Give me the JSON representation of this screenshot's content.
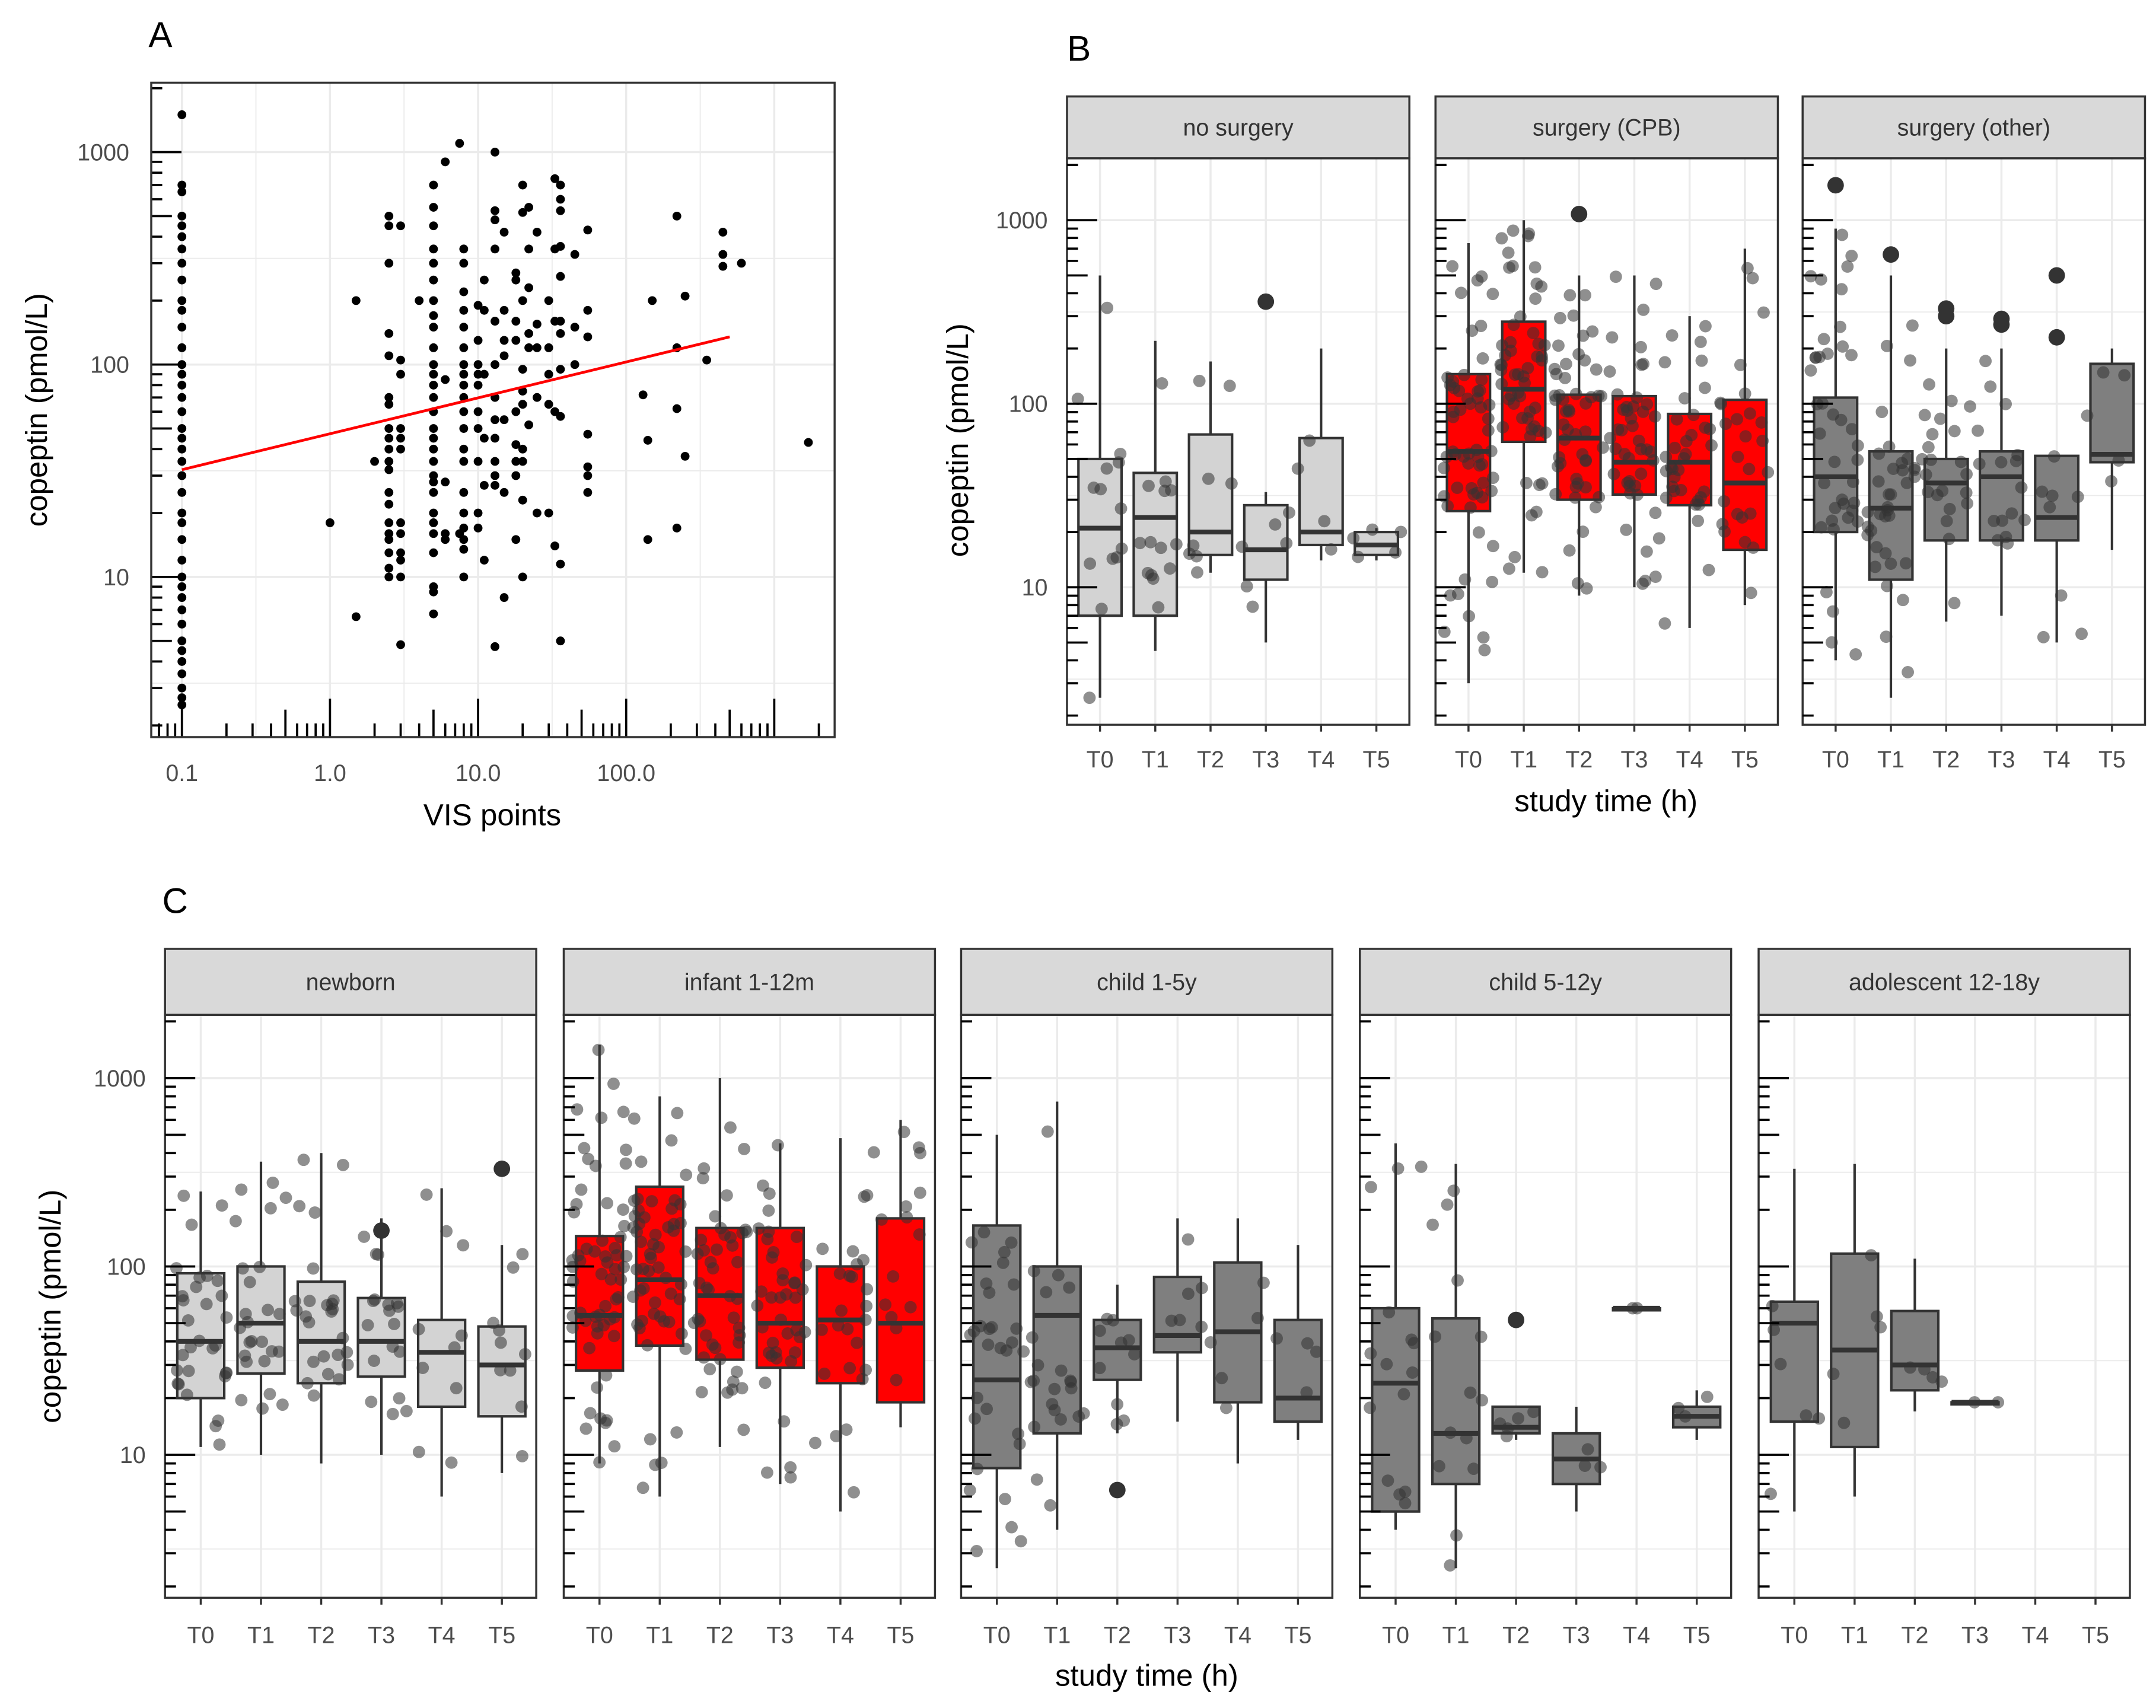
{
  "chart_data": [
    {
      "panel": "A",
      "type": "scatter",
      "xlabel": "VIS points",
      "ylabel": "copeptin (pmol/L)",
      "xscale": "log10",
      "yscale": "log10",
      "xticks": [
        0.1,
        1,
        10,
        100
      ],
      "xtick_labels": [
        "0.1",
        "1.0",
        "10.0",
        "100.0"
      ],
      "yticks": [
        10,
        100,
        1000
      ],
      "ytick_labels": [
        "10",
        "100",
        "1000"
      ],
      "xlim": [
        0.062,
        2570
      ],
      "ylim": [
        1.76,
        2130
      ],
      "regression_line": {
        "color": "#ff0000",
        "from": [
          0.1,
          32
        ],
        "to": [
          500,
          135
        ]
      },
      "points_by_x": [
        [
          0.1,
          [
            1500,
            700,
            650,
            500,
            450,
            400,
            350,
            300,
            250,
            200,
            180,
            150,
            120,
            100,
            90,
            80,
            70,
            60,
            50,
            45,
            40,
            35,
            30,
            25,
            20,
            18,
            15,
            12,
            10,
            9,
            8,
            7,
            6,
            5,
            4.5,
            4,
            3.5,
            3,
            2.7,
            2.5
          ]
        ],
        [
          1,
          [
            18
          ]
        ],
        [
          1.5,
          [
            200,
            6.5
          ]
        ],
        [
          2,
          [
            35
          ]
        ],
        [
          2.5,
          [
            500,
            450,
            300,
            140,
            110,
            70,
            65,
            50,
            45,
            40,
            35,
            32,
            25,
            22,
            18,
            16,
            15,
            13,
            11,
            10
          ]
        ],
        [
          3,
          [
            450,
            105,
            90,
            50,
            45,
            40,
            18,
            16,
            13,
            12,
            10,
            4.8
          ]
        ],
        [
          4,
          [
            200
          ]
        ],
        [
          5,
          [
            700,
            550,
            450,
            350,
            300,
            250,
            200,
            170,
            150,
            120,
            100,
            90,
            80,
            70,
            60,
            50,
            45,
            40,
            35,
            30,
            28,
            25,
            20,
            18,
            16,
            13,
            9,
            8.5,
            6.7
          ]
        ],
        [
          6,
          [
            900,
            85,
            28,
            16,
            15
          ]
        ],
        [
          7.5,
          [
            1100,
            16
          ]
        ],
        [
          8,
          [
            350,
            300,
            220,
            180,
            150,
            120,
            100,
            90,
            80,
            70,
            60,
            50,
            40,
            35,
            25,
            20,
            17,
            15,
            13.5,
            10
          ]
        ],
        [
          10,
          [
            190,
            130,
            100,
            90,
            80,
            60,
            50,
            35,
            20,
            17
          ]
        ],
        [
          11,
          [
            250,
            180,
            90,
            45,
            27,
            12
          ]
        ],
        [
          13,
          [
            1000,
            530,
            480,
            350,
            160,
            100,
            70,
            55,
            45,
            35,
            30,
            27,
            4.7
          ]
        ],
        [
          15,
          [
            420,
            180,
            130,
            110,
            55,
            25,
            8
          ]
        ],
        [
          18,
          [
            270,
            250,
            160,
            130,
            60,
            42,
            35,
            30,
            15
          ]
        ],
        [
          20,
          [
            700,
            520,
            200,
            95,
            75,
            65,
            40,
            35,
            23,
            10
          ]
        ],
        [
          22,
          [
            550,
            350,
            230,
            140,
            120,
            52
          ]
        ],
        [
          25,
          [
            420,
            155,
            120,
            70,
            20
          ]
        ],
        [
          30,
          [
            200,
            120,
            90,
            65,
            20
          ]
        ],
        [
          33,
          [
            750,
            350,
            160,
            60,
            14
          ]
        ],
        [
          36,
          [
            700,
            600,
            530,
            360,
            260,
            160,
            140,
            95,
            57,
            11.5,
            5
          ]
        ],
        [
          45,
          [
            330,
            150,
            100
          ]
        ],
        [
          55,
          [
            430,
            180,
            135,
            47,
            33,
            30,
            25
          ]
        ],
        [
          130,
          [
            72
          ]
        ],
        [
          140,
          [
            44,
            15
          ]
        ],
        [
          150,
          [
            200
          ]
        ],
        [
          220,
          [
            500,
            120,
            62,
            17
          ]
        ],
        [
          250,
          [
            210,
            37
          ]
        ],
        [
          350,
          [
            105
          ]
        ],
        [
          450,
          [
            420,
            330,
            290
          ]
        ],
        [
          600,
          [
            300
          ]
        ],
        [
          1700,
          [
            43
          ]
        ]
      ]
    },
    {
      "panel": "B",
      "type": "box",
      "xlabel": "study time (h)",
      "ylabel": "copeptin (pmol/L)",
      "yscale": "log10",
      "ylim": [
        1.8,
        2300
      ],
      "yticks": [
        10,
        100,
        1000
      ],
      "ytick_labels": [
        "10",
        "100",
        "1000"
      ],
      "categories": [
        "T0",
        "T1",
        "T2",
        "T3",
        "T4",
        "T5"
      ],
      "box_stats_order": [
        "lower_whisker",
        "q1",
        "median",
        "q3",
        "upper_whisker"
      ],
      "facets": [
        {
          "name": "no surgery",
          "fill": "#d3d3d3",
          "n": [
            14,
            14,
            8,
            6,
            4,
            5
          ],
          "boxes": [
            [
              2.5,
              7,
              21,
              50,
              500
            ],
            [
              4.5,
              7,
              24,
              42,
              220
            ],
            [
              12,
              15,
              20,
              68,
              170
            ],
            [
              5,
              11,
              16,
              28,
              33
            ],
            [
              14,
              17,
              20,
              65,
              200
            ],
            [
              14,
              15,
              17,
              20,
              21
            ]
          ],
          "outliers": [
            [],
            [],
            [],
            [
              360
            ],
            [],
            []
          ]
        },
        {
          "name": "surgery (CPB)",
          "fill": "#ff0000",
          "n": [
            60,
            55,
            50,
            45,
            35,
            25
          ],
          "boxes": [
            [
              3,
              26,
              55,
              145,
              750
            ],
            [
              12,
              62,
              120,
              280,
              1000
            ],
            [
              9,
              30,
              65,
              112,
              500
            ],
            [
              10,
              32,
              48,
              110,
              500
            ],
            [
              6,
              28,
              48,
              88,
              300
            ],
            [
              8,
              16,
              37,
              105,
              700
            ]
          ],
          "outliers": [
            [],
            [],
            [
              1080
            ],
            [],
            [],
            []
          ]
        },
        {
          "name": "surgery (other)",
          "fill": "#7f7f7f",
          "n": [
            40,
            35,
            22,
            16,
            8,
            5
          ],
          "boxes": [
            [
              4,
              20,
              40,
              108,
              900
            ],
            [
              2.5,
              11,
              27,
              55,
              500
            ],
            [
              6.5,
              18,
              37,
              50,
              200
            ],
            [
              7,
              18,
              40,
              55,
              200
            ],
            [
              5,
              18,
              24,
              52,
              50
            ],
            [
              16,
              48,
              53,
              165,
              200
            ]
          ],
          "outliers": [
            [
              1550
            ],
            [
              650
            ],
            [
              330,
              300
            ],
            [
              270,
              290
            ],
            [
              500,
              230
            ],
            []
          ]
        }
      ]
    },
    {
      "panel": "C",
      "type": "box",
      "xlabel": "study time (h)",
      "ylabel": "copeptin (pmol/L)",
      "yscale": "log10",
      "ylim": [
        1.8,
        2300
      ],
      "yticks": [
        10,
        100,
        1000
      ],
      "ytick_labels": [
        "10",
        "100",
        "1000"
      ],
      "categories": [
        "T0",
        "T1",
        "T2",
        "T3",
        "T4",
        "T5"
      ],
      "box_stats_order": [
        "lower_whisker",
        "q1",
        "median",
        "q3",
        "upper_whisker"
      ],
      "facets": [
        {
          "name": "newborn",
          "fill": "#d3d3d3",
          "n": [
            30,
            25,
            25,
            18,
            10,
            10
          ],
          "boxes": [
            [
              11,
              20,
              40,
              92,
              250
            ],
            [
              10,
              27,
              50,
              100,
              360
            ],
            [
              9,
              24,
              40,
              83,
              400
            ],
            [
              10,
              26,
              40,
              68,
              180
            ],
            [
              6,
              18,
              35,
              52,
              260
            ],
            [
              8,
              16,
              30,
              48,
              130
            ]
          ],
          "outliers": [
            [],
            [],
            [],
            [
              155
            ],
            [],
            [
              330
            ]
          ]
        },
        {
          "name": "infant 1-12m",
          "fill": "#ff0000",
          "n": [
            60,
            55,
            45,
            40,
            25,
            15
          ],
          "boxes": [
            [
              9,
              28,
              55,
              145,
              1500
            ],
            [
              6,
              38,
              85,
              265,
              800
            ],
            [
              11,
              32,
              70,
              160,
              1000
            ],
            [
              7,
              29,
              50,
              160,
              450
            ],
            [
              5,
              24,
              52,
              100,
              480
            ],
            [
              14,
              19,
              50,
              180,
              600
            ]
          ],
          "outliers": [
            [],
            [],
            [],
            [],
            [],
            []
          ]
        },
        {
          "name": "child 1-5y",
          "fill": "#7f7f7f",
          "n": [
            30,
            22,
            10,
            6,
            5,
            4
          ],
          "boxes": [
            [
              2.5,
              8.5,
              25,
              165,
              500
            ],
            [
              4,
              13,
              55,
              100,
              750
            ],
            [
              13,
              25,
              37,
              52,
              80
            ],
            [
              15,
              35,
              43,
              88,
              180
            ],
            [
              9,
              19,
              45,
              105,
              180
            ],
            [
              12,
              15,
              20,
              52,
              130
            ]
          ],
          "outliers": [
            [],
            [],
            [
              6.5
            ],
            [],
            [],
            []
          ]
        },
        {
          "name": "child 5-12y",
          "fill": "#7f7f7f",
          "n": [
            15,
            14,
            5,
            3,
            2,
            3
          ],
          "boxes": [
            [
              4,
              5,
              24,
              60,
              450
            ],
            [
              2.5,
              7,
              13,
              53,
              350
            ],
            [
              12,
              13,
              14,
              18,
              18
            ],
            [
              5,
              7,
              9.5,
              13,
              18
            ],
            [
              60,
              60,
              60,
              60,
              60
            ],
            [
              12,
              14,
              16,
              18,
              22
            ]
          ],
          "outliers": [
            [],
            [],
            [
              52
            ],
            [],
            [],
            []
          ]
        },
        {
          "name": "adolescent 12-18y",
          "fill": "#7f7f7f",
          "n": [
            6,
            5,
            4,
            2,
            0,
            0
          ],
          "boxes": [
            [
              5,
              15,
              50,
              65,
              330
            ],
            [
              6,
              11,
              36,
              117,
              350
            ],
            [
              17,
              22,
              30,
              58,
              110
            ],
            [
              19,
              19,
              19,
              19,
              19
            ],
            null,
            null
          ],
          "outliers": [
            [],
            [],
            [],
            [],
            [],
            []
          ]
        }
      ]
    }
  ]
}
